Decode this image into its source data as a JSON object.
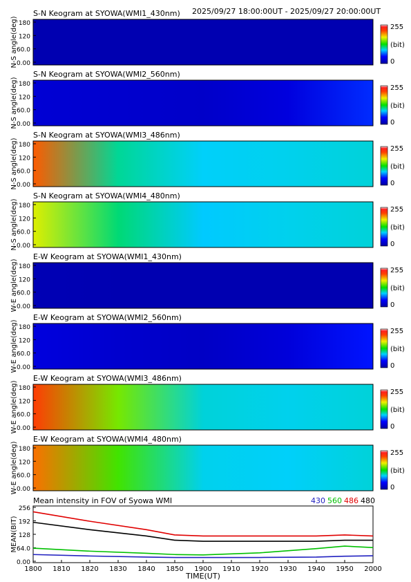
{
  "header": {
    "time_range": "2025/09/27 18:00:00UT - 2025/09/27 20:00:00UT"
  },
  "colorbar": {
    "max_label": "255",
    "unit_label": "(bit)",
    "min_label": "0"
  },
  "chart_data": [
    {
      "type": "heatmap",
      "title": "S-N Keogram at SYOWA(WMI1_430nm)",
      "ylabel": "N-S angle(deg)",
      "y_ticks": [
        "180",
        "120",
        "60.0",
        "0.00"
      ],
      "ylim": [
        0,
        180
      ],
      "xlim": [
        1800,
        2000
      ],
      "levels": [
        8,
        8,
        8,
        8,
        8
      ]
    },
    {
      "type": "heatmap",
      "title": "S-N Keogram at SYOWA(WMI2_560nm)",
      "ylabel": "N-S angle(deg)",
      "y_ticks": [
        "180",
        "120",
        "60.0",
        "0.00"
      ],
      "ylim": [
        0,
        180
      ],
      "xlim": [
        1800,
        2000
      ],
      "levels": [
        25,
        22,
        20,
        30,
        55
      ]
    },
    {
      "type": "heatmap",
      "title": "S-N Keogram at SYOWA(WMI3_486nm)",
      "ylabel": "N-S angle(deg)",
      "y_ticks": [
        "180",
        "120",
        "60.0",
        "0.00"
      ],
      "ylim": [
        0,
        180
      ],
      "xlim": [
        1800,
        2000
      ],
      "levels": [
        210,
        105,
        90,
        92,
        95
      ]
    },
    {
      "type": "heatmap",
      "title": "S-N Keogram at SYOWA(WMI4_480nm)",
      "ylabel": "N-S angle(deg)",
      "y_ticks": [
        "180",
        "120",
        "60.0",
        "0.00"
      ],
      "ylim": [
        0,
        180
      ],
      "xlim": [
        1800,
        2000
      ],
      "levels": [
        170,
        110,
        88,
        92,
        95
      ]
    },
    {
      "type": "heatmap",
      "title": "E-W Keogram at SYOWA(WMI1_430nm)",
      "ylabel": "W-E angle(deg)",
      "y_ticks": [
        "180",
        "120",
        "60.0",
        "0.00"
      ],
      "ylim": [
        0,
        180
      ],
      "xlim": [
        1800,
        2000
      ],
      "levels": [
        10,
        8,
        8,
        8,
        8
      ]
    },
    {
      "type": "heatmap",
      "title": "E-W Keogram at SYOWA(WMI2_560nm)",
      "ylabel": "W-E angle(deg)",
      "y_ticks": [
        "180",
        "120",
        "60.0",
        "0.00"
      ],
      "ylim": [
        0,
        180
      ],
      "xlim": [
        1800,
        2000
      ],
      "levels": [
        30,
        22,
        18,
        28,
        50
      ]
    },
    {
      "type": "heatmap",
      "title": "E-W Keogram at SYOWA(WMI3_486nm)",
      "ylabel": "W-E angle(deg)",
      "y_ticks": [
        "180",
        "120",
        "60.0",
        "0.00"
      ],
      "ylim": [
        0,
        180
      ],
      "xlim": [
        1800,
        2000
      ],
      "levels": [
        220,
        150,
        95,
        92,
        95
      ]
    },
    {
      "type": "heatmap",
      "title": "E-W Keogram at SYOWA(WMI4_480nm)",
      "ylabel": "W-E angle(deg)",
      "y_ticks": [
        "180",
        "120",
        "60.0",
        "0.00"
      ],
      "ylim": [
        0,
        180
      ],
      "xlim": [
        1800,
        2000
      ],
      "levels": [
        205,
        140,
        92,
        90,
        95
      ]
    },
    {
      "type": "line",
      "title": "Mean intensity in FOV of Syowa WMI",
      "xlabel": "TIME(UT)",
      "ylabel": "MEAN(BIT)",
      "x": [
        1800,
        1820,
        1840,
        1850,
        1900,
        1920,
        1940,
        1950,
        2000
      ],
      "xlim": [
        1800,
        2000
      ],
      "ylim": [
        0,
        256
      ],
      "x_ticks": [
        "1800",
        "1810",
        "1820",
        "1830",
        "1840",
        "1850",
        "1900",
        "1910",
        "1920",
        "1930",
        "1940",
        "1950",
        "2000"
      ],
      "y_ticks": [
        "256",
        "192",
        "128",
        "64.0",
        "0.00"
      ],
      "series": [
        {
          "name": "430",
          "color": "#2020c0",
          "values": [
            32,
            25,
            20,
            18,
            18,
            18,
            20,
            24,
            26
          ]
        },
        {
          "name": "560",
          "color": "#00c000",
          "values": [
            62,
            48,
            38,
            32,
            30,
            40,
            60,
            72,
            65
          ]
        },
        {
          "name": "486",
          "color": "#e00000",
          "values": [
            235,
            190,
            150,
            125,
            120,
            120,
            120,
            125,
            120
          ]
        },
        {
          "name": "480",
          "color": "#000000",
          "values": [
            185,
            150,
            120,
            100,
            95,
            95,
            95,
            100,
            100
          ]
        }
      ]
    }
  ]
}
